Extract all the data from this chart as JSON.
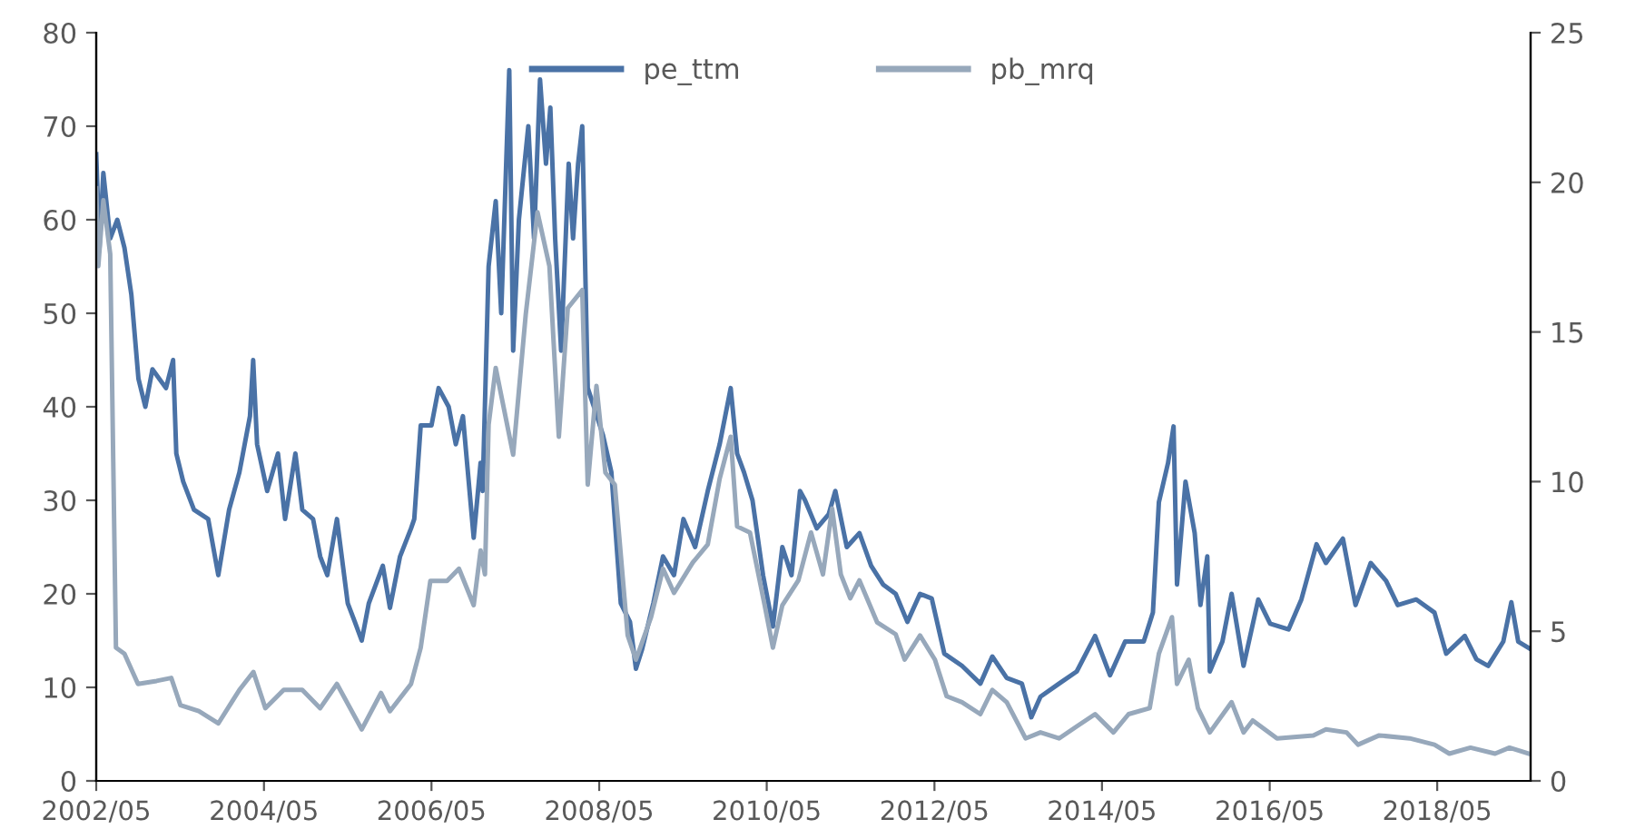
{
  "chart_data": {
    "type": "line",
    "legend": "top",
    "grid": false,
    "xlim": [
      "2002-05-01",
      "2019-06-12"
    ],
    "xticks": [
      {
        "value": "2002-05",
        "label": "2002/05"
      },
      {
        "value": "2004-05",
        "label": "2004/05"
      },
      {
        "value": "2006-05",
        "label": "2006/05"
      },
      {
        "value": "2008-05",
        "label": "2008/05"
      },
      {
        "value": "2010-05",
        "label": "2010/05"
      },
      {
        "value": "2012-05",
        "label": "2012/05"
      },
      {
        "value": "2014-05",
        "label": "2014/05"
      },
      {
        "value": "2016-05",
        "label": "2016/05"
      },
      {
        "value": "2018-05",
        "label": "2018/05"
      }
    ],
    "ylim": [
      0,
      80
    ],
    "yticks": [
      0,
      10,
      20,
      30,
      40,
      50,
      60,
      70,
      80
    ],
    "y2lim": [
      0,
      25
    ],
    "y2ticks": [
      0,
      5,
      10,
      15,
      20,
      25
    ],
    "series": [
      {
        "name": "pe_ttm",
        "color": "#4a72a6",
        "axis": "y",
        "x": [
          "2002-05-01",
          "2002-05-15",
          "2002-06-01",
          "2002-07-01",
          "2002-08-01",
          "2002-09-01",
          "2002-10-01",
          "2002-11-01",
          "2002-12-01",
          "2003-01-01",
          "2003-03-01",
          "2003-04-01",
          "2003-04-15",
          "2003-05-15",
          "2003-07-01",
          "2003-09-01",
          "2003-10-15",
          "2003-12-01",
          "2004-01-15",
          "2004-03-01",
          "2004-03-15",
          "2004-04-01",
          "2004-05-15",
          "2004-07-01",
          "2004-08-01",
          "2004-09-15",
          "2004-10-15",
          "2004-12-01",
          "2005-01-01",
          "2005-02-01",
          "2005-03-15",
          "2005-05-01",
          "2005-06-01",
          "2005-07-01",
          "2005-08-01",
          "2005-10-01",
          "2005-11-01",
          "2005-12-15",
          "2006-02-01",
          "2006-02-15",
          "2006-03-15",
          "2006-05-01",
          "2006-06-01",
          "2006-07-15",
          "2006-08-15",
          "2006-09-15",
          "2006-11-01",
          "2006-12-01",
          "2006-12-10",
          "2007-01-05",
          "2007-02-05",
          "2007-03-01",
          "2007-04-05",
          "2007-04-22",
          "2007-05-17",
          "2007-06-27",
          "2007-07-22",
          "2007-08-17",
          "2007-09-12",
          "2007-10-01",
          "2007-10-22",
          "2007-11-17",
          "2007-12-20",
          "2008-01-08",
          "2008-01-30",
          "2008-02-17",
          "2008-03-12",
          "2008-04-08",
          "2008-05-17",
          "2008-06-23",
          "2008-08-03",
          "2008-09-12",
          "2008-10-08",
          "2008-11-03",
          "2008-12-23",
          "2009-02-03",
          "2009-03-23",
          "2009-05-03",
          "2009-06-23",
          "2009-08-17",
          "2009-10-08",
          "2009-11-25",
          "2009-12-23",
          "2010-01-22",
          "2010-02-28",
          "2010-04-15",
          "2010-05-28",
          "2010-07-08",
          "2010-08-17",
          "2010-09-23",
          "2010-10-15",
          "2010-12-05",
          "2011-01-26",
          "2011-02-24",
          "2011-04-15",
          "2011-06-09",
          "2011-07-30",
          "2011-09-20",
          "2011-11-14",
          "2012-01-04",
          "2012-02-28",
          "2012-04-19",
          "2012-06-13",
          "2012-08-29",
          "2012-11-17",
          "2013-01-08",
          "2013-03-12",
          "2013-05-17",
          "2013-06-27",
          "2013-08-06",
          "2013-10-26",
          "2014-01-11",
          "2014-04-01",
          "2014-06-05",
          "2014-08-10",
          "2014-10-30",
          "2014-12-09",
          "2015-01-04",
          "2015-02-13",
          "2015-03-09",
          "2015-03-24",
          "2015-04-30",
          "2015-06-09",
          "2015-07-04",
          "2015-08-03",
          "2015-08-14",
          "2015-10-08",
          "2015-11-17",
          "2016-01-08",
          "2016-03-12",
          "2016-05-03",
          "2016-07-22",
          "2016-09-16",
          "2016-11-21",
          "2017-01-01",
          "2017-03-16",
          "2017-05-10",
          "2017-07-15",
          "2017-09-20",
          "2017-11-10",
          "2018-01-30",
          "2018-04-19",
          "2018-06-09",
          "2018-08-29",
          "2018-10-19",
          "2018-12-09",
          "2019-02-13",
          "2019-03-20",
          "2019-04-19",
          "2019-06-05"
        ],
        "values": [
          67,
          57,
          65,
          58,
          60,
          57,
          52,
          43,
          40,
          44,
          42,
          45,
          35,
          32,
          29,
          28,
          22,
          29,
          33,
          39,
          45,
          36,
          31,
          35,
          28,
          35,
          29,
          28,
          24,
          22,
          28,
          19,
          17,
          15,
          19,
          23,
          18.5,
          24,
          27,
          28,
          38,
          38,
          42,
          40,
          36,
          39,
          26,
          34,
          31,
          55,
          62,
          50,
          76,
          46,
          60,
          70,
          58,
          75,
          66,
          72,
          58,
          46,
          66,
          58,
          66,
          70,
          42,
          40,
          37,
          33,
          19,
          17,
          12,
          14,
          19,
          24,
          22,
          28,
          25,
          31,
          36,
          42,
          35,
          33,
          30,
          22,
          16.5,
          25,
          22,
          31,
          30,
          27,
          28.5,
          31,
          25,
          26.5,
          23,
          21,
          20,
          17,
          20,
          19.5,
          13.6,
          12.3,
          10.4,
          13.3,
          11,
          10.4,
          6.8,
          9,
          10.4,
          11.7,
          15.5,
          11.3,
          14.9,
          14.9,
          18,
          29.8,
          34,
          37.9,
          21,
          32,
          26.5,
          18.8,
          24,
          11.7,
          14.9,
          20,
          12.3,
          19.4,
          16.8,
          16.2,
          19.4,
          25.3,
          23.3,
          25.9,
          18.8,
          23.3,
          21.4,
          18.8,
          19.4,
          18,
          13.6,
          15.5,
          13,
          12.3,
          14.9,
          19.1,
          14.9,
          14.2
        ]
      },
      {
        "name": "pb_mrq",
        "color": "#97a8bb",
        "axis": "y2",
        "x": [
          "2002-05-01",
          "2002-05-10",
          "2002-06-01",
          "2002-07-01",
          "2002-07-26",
          "2002-09-01",
          "2002-10-30",
          "2003-01-19",
          "2003-03-24",
          "2003-05-03",
          "2003-07-22",
          "2003-10-15",
          "2004-01-15",
          "2004-03-16",
          "2004-05-07",
          "2004-07-26",
          "2004-10-15",
          "2005-01-01",
          "2005-03-15",
          "2005-07-01",
          "2005-09-23",
          "2005-11-01",
          "2006-02-01",
          "2006-03-15",
          "2006-04-26",
          "2006-07-08",
          "2006-08-29",
          "2006-11-01",
          "2006-12-01",
          "2006-12-20",
          "2007-01-05",
          "2007-02-05",
          "2007-04-22",
          "2007-06-16",
          "2007-08-06",
          "2007-09-27",
          "2007-11-07",
          "2007-12-16",
          "2008-02-17",
          "2008-03-12",
          "2008-04-19",
          "2008-05-28",
          "2008-07-08",
          "2008-09-02",
          "2008-10-08",
          "2008-12-13",
          "2009-02-03",
          "2009-03-23",
          "2009-06-13",
          "2009-08-17",
          "2009-10-08",
          "2009-11-25",
          "2009-12-23",
          "2010-02-17",
          "2010-04-22",
          "2010-05-28",
          "2010-07-08",
          "2010-09-16",
          "2010-11-10",
          "2011-01-01",
          "2011-02-10",
          "2011-03-20",
          "2011-04-30",
          "2011-06-09",
          "2011-08-25",
          "2011-11-14",
          "2011-12-23",
          "2012-02-28",
          "2012-05-03",
          "2012-06-23",
          "2012-08-29",
          "2012-11-17",
          "2013-01-08",
          "2013-03-12",
          "2013-06-02",
          "2013-08-06",
          "2013-10-26",
          "2014-01-11",
          "2014-04-01",
          "2014-06-20",
          "2014-08-25",
          "2014-11-25",
          "2015-01-04",
          "2015-03-02",
          "2015-03-24",
          "2015-05-14",
          "2015-06-23",
          "2015-08-14",
          "2015-11-17",
          "2016-01-08",
          "2016-02-17",
          "2016-06-02",
          "2016-11-07",
          "2017-01-01",
          "2017-04-01",
          "2017-05-21",
          "2017-08-21",
          "2018-01-01",
          "2018-04-19",
          "2018-06-23",
          "2018-09-23",
          "2019-01-08",
          "2019-03-12",
          "2019-06-05"
        ],
        "values": [
          19.8,
          17.2,
          19.4,
          17.6,
          4.45,
          4.25,
          3.24,
          3.34,
          3.44,
          2.53,
          2.33,
          1.92,
          3.04,
          3.64,
          2.43,
          3.04,
          3.04,
          2.43,
          3.24,
          1.72,
          2.94,
          2.33,
          3.24,
          4.45,
          6.68,
          6.68,
          7.09,
          5.87,
          7.7,
          6.9,
          11.9,
          13.8,
          10.9,
          15.6,
          19,
          17.2,
          11.5,
          15.8,
          16.4,
          9.9,
          13.2,
          10.3,
          9.9,
          4.86,
          4.05,
          5.47,
          7.09,
          6.28,
          7.3,
          7.9,
          10.1,
          11.5,
          8.5,
          8.3,
          5.87,
          4.45,
          5.87,
          6.7,
          8.3,
          6.9,
          9.1,
          6.9,
          6.1,
          6.7,
          5.3,
          4.9,
          4.05,
          4.86,
          4.05,
          2.83,
          2.63,
          2.23,
          3.04,
          2.63,
          1.42,
          1.62,
          1.42,
          1.82,
          2.23,
          1.62,
          2.23,
          2.43,
          4.25,
          5.47,
          3.24,
          4.05,
          2.43,
          1.62,
          2.63,
          1.62,
          2.02,
          1.42,
          1.52,
          1.72,
          1.62,
          1.21,
          1.52,
          1.42,
          1.21,
          0.91,
          1.11,
          0.91,
          1.11,
          0.91
        ]
      }
    ]
  }
}
